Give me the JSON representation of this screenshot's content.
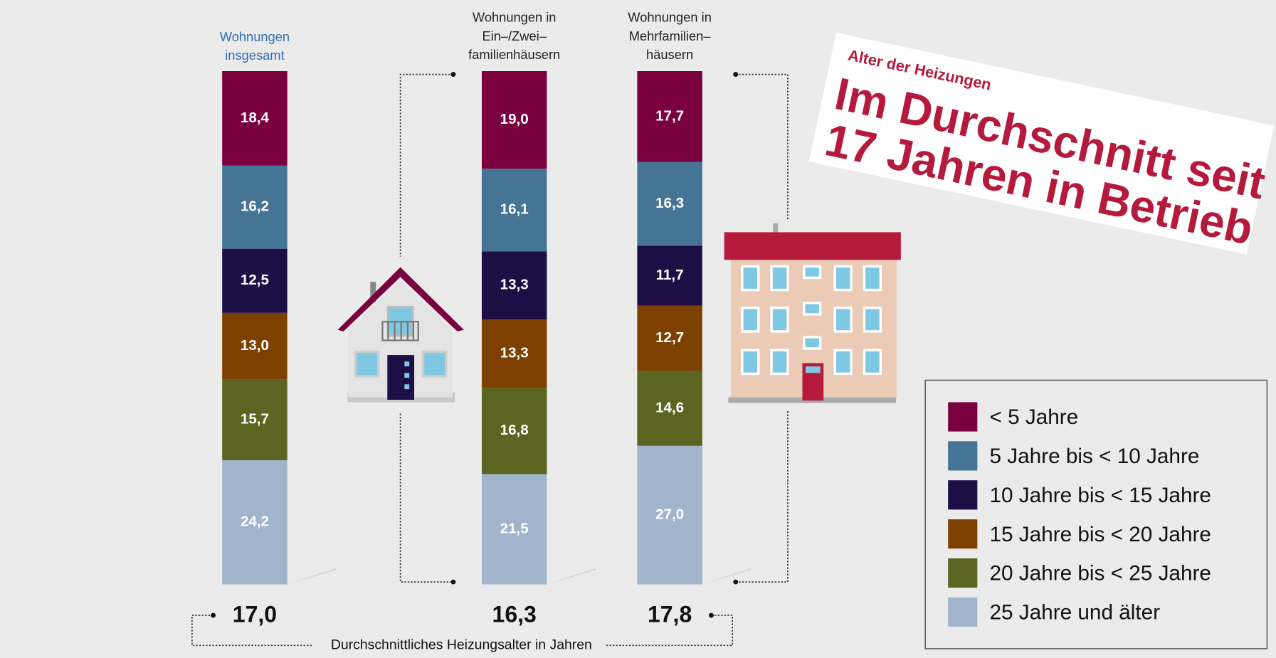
{
  "chart_data": {
    "type": "bar",
    "stacked": true,
    "headline": "Alter der Heizungen",
    "title": [
      "Im Durchschnitt seit",
      "17 Jahren in Betrieb"
    ],
    "categories": [
      [
        "Wohnungen",
        "insgesamt"
      ],
      [
        "Wohnungen in",
        "Ein–/Zwei–",
        "familienhäusern"
      ],
      [
        "Wohnungen in",
        "Mehrfamilien–",
        "häusern"
      ]
    ],
    "ylim": [
      0,
      100
    ],
    "series": [
      {
        "name": "< 5 Jahre",
        "color": "#7a0040",
        "values": [
          18.4,
          19.0,
          17.7
        ],
        "value_labels": [
          "18,4",
          "19,0",
          "17,7"
        ]
      },
      {
        "name": "5 Jahre bis < 10 Jahre",
        "color": "#467495",
        "values": [
          16.2,
          16.1,
          16.3
        ],
        "value_labels": [
          "16,2",
          "16,1",
          "16,3"
        ]
      },
      {
        "name": "10 Jahre bis < 15 Jahre",
        "color": "#1d0f46",
        "values": [
          12.5,
          13.3,
          11.7
        ],
        "value_labels": [
          "12,5",
          "13,3",
          "11,7"
        ]
      },
      {
        "name": "15 Jahre bis < 20 Jahre",
        "color": "#7e4001",
        "values": [
          13.0,
          13.3,
          12.7
        ],
        "value_labels": [
          "13,0",
          "13,3",
          "12,7"
        ]
      },
      {
        "name": "20 Jahre bis < 25 Jahre",
        "color": "#5b6421",
        "values": [
          15.7,
          16.8,
          14.6
        ],
        "value_labels": [
          "15,7",
          "16,8",
          "14,6"
        ]
      },
      {
        "name": "25 Jahre und älter",
        "color": "#a1b4cb",
        "values": [
          24.2,
          21.5,
          27.0
        ],
        "value_labels": [
          "24,2",
          "21,5",
          "27,0"
        ]
      }
    ],
    "average": {
      "label": "Durchschnittliches Heizungsalter in Jahren",
      "values": [
        17.0,
        16.3,
        17.8
      ],
      "value_labels": [
        "17,0",
        "16,3",
        "17,8"
      ]
    }
  }
}
